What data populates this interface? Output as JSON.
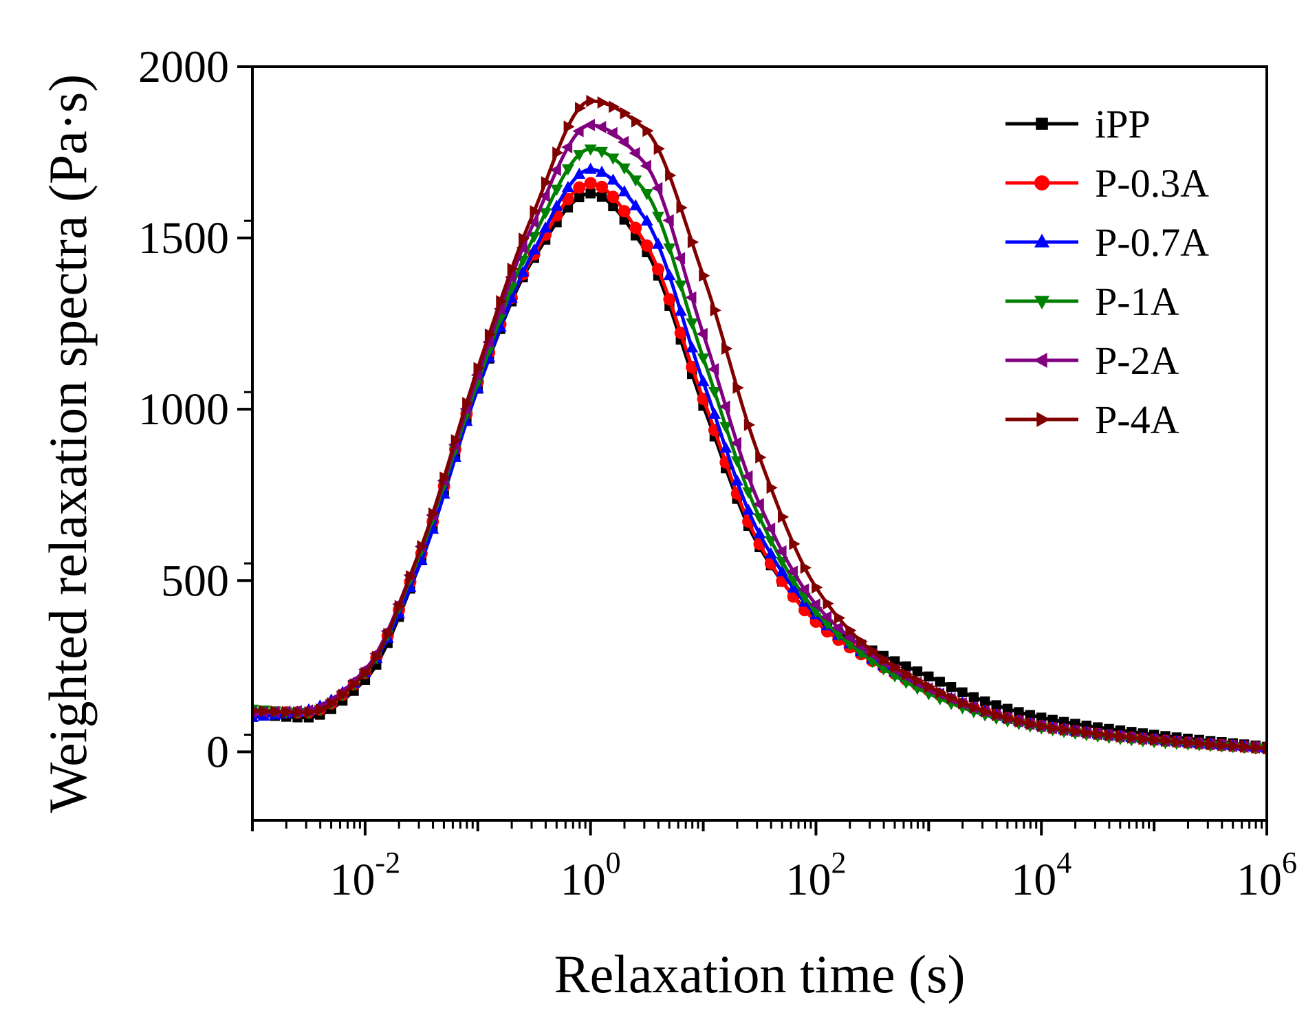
{
  "chart_data": {
    "type": "line",
    "xlabel": "Relaxation time (s)",
    "ylabel": "Weighted relaxation spectra (Pa·s)",
    "x_scale": "log",
    "xlim": [
      0.001,
      1000000
    ],
    "ylim": [
      -200,
      2000
    ],
    "x_ticks": [
      {
        "value": 0.01,
        "base": "10",
        "exp": "-2"
      },
      {
        "value": 1,
        "base": "10",
        "exp": "0"
      },
      {
        "value": 100,
        "base": "10",
        "exp": "2"
      },
      {
        "value": 10000,
        "base": "10",
        "exp": "4"
      },
      {
        "value": 1000000,
        "base": "10",
        "exp": "6"
      }
    ],
    "y_ticks": [
      "0",
      "500",
      "1000",
      "1500",
      "2000"
    ],
    "legend_position": "top-right",
    "grid": false,
    "x": [
      0.001,
      0.003,
      0.01,
      0.03,
      0.1,
      0.3,
      1,
      3,
      10,
      30,
      100,
      300,
      1000,
      3000,
      10000,
      100000,
      1000000
    ],
    "series": [
      {
        "name": "iPP",
        "color": "#000000",
        "marker": "square",
        "values": [
          110,
          100,
          210,
          540,
          1060,
          1430,
          1630,
          1470,
          1010,
          610,
          390,
          300,
          220,
          150,
          100,
          50,
          15
        ]
      },
      {
        "name": "P-0.3A",
        "color": "#ff0000",
        "marker": "circle",
        "values": [
          115,
          115,
          230,
          560,
          1080,
          1440,
          1660,
          1490,
          1030,
          620,
          380,
          270,
          180,
          120,
          75,
          35,
          10
        ]
      },
      {
        "name": "P-0.7A",
        "color": "#0000ff",
        "marker": "triangle-up",
        "values": [
          100,
          120,
          230,
          540,
          1060,
          1450,
          1700,
          1560,
          1080,
          650,
          400,
          275,
          185,
          120,
          75,
          35,
          10
        ]
      },
      {
        "name": "P-1A",
        "color": "#008000",
        "marker": "triangle-down",
        "values": [
          125,
          115,
          230,
          570,
          1080,
          1490,
          1760,
          1640,
          1150,
          700,
          410,
          270,
          170,
          110,
          70,
          30,
          10
        ]
      },
      {
        "name": "P-2A",
        "color": "#800080",
        "marker": "triangle-left",
        "values": [
          115,
          120,
          240,
          580,
          1100,
          1530,
          1830,
          1720,
          1220,
          740,
          430,
          290,
          185,
          120,
          75,
          35,
          10
        ]
      },
      {
        "name": "P-4A",
        "color": "#800000",
        "marker": "triangle-right",
        "values": [
          120,
          115,
          230,
          580,
          1120,
          1560,
          1900,
          1820,
          1390,
          880,
          480,
          300,
          190,
          120,
          75,
          35,
          10
        ]
      }
    ]
  }
}
